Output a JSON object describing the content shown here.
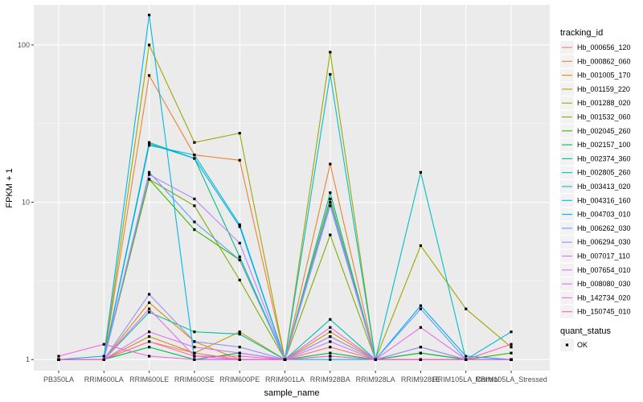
{
  "chart_data": {
    "type": "line",
    "xlabel": "sample_name",
    "ylabel": "FPKM + 1",
    "y_scale": "log10",
    "ylim": [
      0.85,
      180
    ],
    "y_ticks": [
      1,
      10,
      100
    ],
    "y_tick_labels": [
      "1",
      "10",
      "100"
    ],
    "categories": [
      "PB350LA",
      "RRIM600LA",
      "RRIM600LE",
      "RRIM600SE",
      "RRIM600PE",
      "RRIM901LA",
      "RRIM928BA",
      "RRIM928LA",
      "RRIM928LE",
      "RRIM105LA_Control",
      "RRIM105LA_Stressed"
    ],
    "grid": true,
    "legend_position": "right",
    "series": [
      {
        "name": "Hb_000656_120",
        "color": "#F8766D",
        "values": [
          1.0,
          1.0,
          1.3,
          1.1,
          1.0,
          1.0,
          1.2,
          1.0,
          1.2,
          1.0,
          1.0
        ]
      },
      {
        "name": "Hb_000862_060",
        "color": "#EA8331",
        "values": [
          1.0,
          1.0,
          64,
          20,
          18.5,
          1.0,
          17.5,
          1.0,
          1.0,
          1.0,
          1.0
        ]
      },
      {
        "name": "Hb_001005_170",
        "color": "#D89000",
        "values": [
          1.0,
          1.0,
          2.3,
          1.3,
          1.0,
          1.0,
          1.5,
          1.0,
          1.0,
          1.0,
          1.0
        ]
      },
      {
        "name": "Hb_001159_220",
        "color": "#C09B00",
        "values": [
          1.0,
          1.0,
          1.4,
          1.1,
          1.5,
          1.0,
          1.4,
          1.0,
          1.0,
          1.0,
          1.0
        ]
      },
      {
        "name": "Hb_001288_020",
        "color": "#A3A500",
        "values": [
          1.0,
          1.0,
          100,
          24,
          27.5,
          1.0,
          90,
          1.0,
          5.3,
          2.1,
          1.2
        ]
      },
      {
        "name": "Hb_001532_060",
        "color": "#7CAE00",
        "values": [
          1.0,
          1.0,
          14,
          9.5,
          3.2,
          1.0,
          6.2,
          1.0,
          1.1,
          1.0,
          1.0
        ]
      },
      {
        "name": "Hb_002045_260",
        "color": "#39B600",
        "values": [
          1.0,
          1.0,
          14,
          6.7,
          4.3,
          1.0,
          10.5,
          1.0,
          1.0,
          1.0,
          1.1
        ]
      },
      {
        "name": "Hb_002157_100",
        "color": "#00BB4E",
        "values": [
          1.0,
          1.0,
          1.2,
          1.0,
          1.1,
          1.0,
          1.1,
          1.0,
          1.1,
          1.0,
          1.0
        ]
      },
      {
        "name": "Hb_002374_360",
        "color": "#00BF7D",
        "values": [
          1.0,
          1.0,
          24,
          19,
          4.5,
          1.0,
          11.5,
          1.0,
          1.0,
          1.0,
          1.0
        ]
      },
      {
        "name": "Hb_002805_260",
        "color": "#00C1A3",
        "values": [
          1.0,
          1.0,
          2.0,
          1.5,
          1.45,
          1.0,
          1.8,
          1.0,
          1.0,
          1.0,
          1.0
        ]
      },
      {
        "name": "Hb_003413_020",
        "color": "#00BFC4",
        "values": [
          1.0,
          1.0,
          23,
          20,
          7.2,
          1.0,
          65,
          1.0,
          15.5,
          1.0,
          1.0
        ]
      },
      {
        "name": "Hb_004316_160",
        "color": "#00B8E5",
        "values": [
          1.0,
          1.05,
          155,
          1.0,
          1.0,
          1.0,
          1.0,
          1.0,
          1.0,
          1.0,
          1.5
        ]
      },
      {
        "name": "Hb_004703_010",
        "color": "#00A9FF",
        "values": [
          1.0,
          1.0,
          23.5,
          19,
          7.0,
          1.0,
          10,
          1.0,
          2.2,
          1.05,
          1.0
        ]
      },
      {
        "name": "Hb_006262_030",
        "color": "#619CFF",
        "values": [
          1.0,
          1.0,
          15.5,
          7.5,
          4.3,
          1.0,
          9.5,
          1.0,
          2.1,
          1.0,
          1.0
        ]
      },
      {
        "name": "Hb_006294_030",
        "color": "#9590FF",
        "values": [
          1.0,
          1.0,
          2.6,
          1.3,
          1.2,
          1.0,
          1.4,
          1.0,
          1.2,
          1.0,
          1.0
        ]
      },
      {
        "name": "Hb_007017_110",
        "color": "#B983FF",
        "values": [
          1.0,
          1.0,
          15,
          10.5,
          5.5,
          1.0,
          10,
          1.0,
          1.0,
          1.0,
          1.0
        ]
      },
      {
        "name": "Hb_007654_010",
        "color": "#D575FE",
        "values": [
          1.0,
          1.0,
          1.5,
          1.2,
          1.1,
          1.0,
          1.3,
          1.0,
          1.0,
          1.0,
          1.0
        ]
      },
      {
        "name": "Hb_008080_030",
        "color": "#E76BF3",
        "values": [
          1.0,
          1.0,
          2.1,
          1.05,
          1.0,
          1.0,
          1.6,
          1.0,
          1.6,
          1.0,
          1.0
        ]
      },
      {
        "name": "Hb_142734_020",
        "color": "#F564E3",
        "values": [
          1.05,
          1.25,
          1.05,
          1.0,
          1.0,
          1.0,
          1.05,
          1.0,
          1.0,
          1.0,
          1.0
        ]
      },
      {
        "name": "Hb_150745_010",
        "color": "#FF64B0",
        "values": [
          1.0,
          1.0,
          1.3,
          1.05,
          1.05,
          1.0,
          1.05,
          1.0,
          1.0,
          1.0,
          1.25
        ]
      }
    ],
    "point_legend": {
      "title": "quant_status",
      "entries": [
        "OK"
      ]
    }
  }
}
